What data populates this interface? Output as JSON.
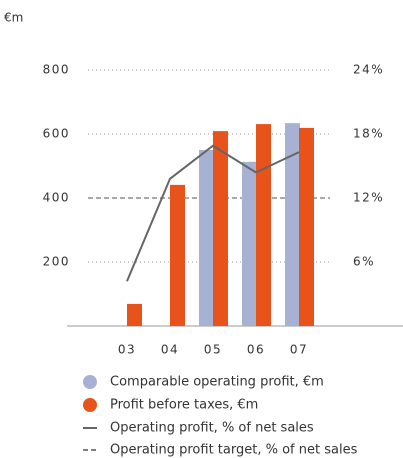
{
  "chart_data": {
    "type": "bar",
    "title": "€m",
    "categories": [
      "03",
      "04",
      "05",
      "06",
      "07"
    ],
    "series": [
      {
        "name": "Comparable operating profit, €m",
        "type": "bar",
        "color": "#a7b1d3",
        "values": [
          null,
          null,
          550,
          513,
          634
        ]
      },
      {
        "name": "Profit before taxes, €m",
        "type": "bar",
        "color": "#e8531c",
        "values": [
          69,
          441,
          609,
          631,
          619
        ]
      },
      {
        "name": "Operating profit, % of net sales",
        "type": "line",
        "axis": "y2",
        "color": "#666666",
        "values": [
          4.2,
          13.8,
          16.9,
          14.4,
          16.3
        ]
      }
    ],
    "target": {
      "name": "Operating profit target, % of net sales",
      "value": 12,
      "axis": "y2",
      "color": "#555555"
    },
    "ylim": [
      0,
      800
    ],
    "yticks": [
      200,
      400,
      600,
      800
    ],
    "y2lim": [
      0,
      24
    ],
    "y2ticks": [
      {
        "value": 6,
        "label": "6%"
      },
      {
        "value": 12,
        "label": "12%"
      },
      {
        "value": 18,
        "label": "18%"
      },
      {
        "value": 24,
        "label": "24%"
      }
    ],
    "grid": true
  }
}
